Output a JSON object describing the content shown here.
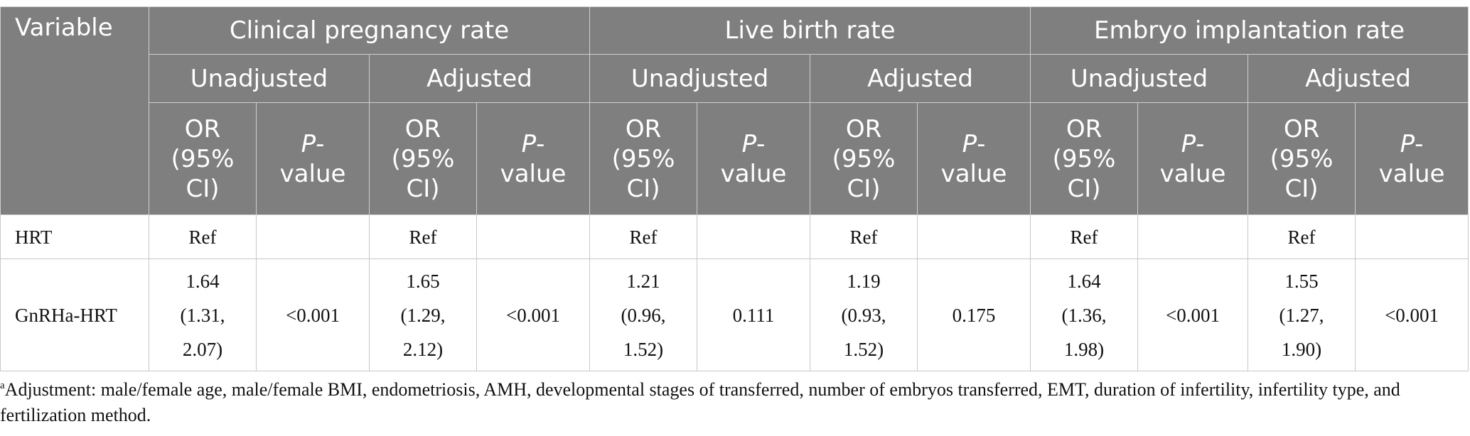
{
  "header": {
    "variable": "Variable",
    "groups": [
      "Clinical pregnancy rate",
      "Live birth rate",
      "Embryo implantation rate"
    ],
    "unadjusted": "Unadjusted",
    "adjusted": "Adjusted",
    "or_line1": "OR",
    "or_line2": "(95%",
    "or_line3": "CI)",
    "p_italic": "P",
    "p_dash": "-",
    "p_value": "value"
  },
  "rows": [
    {
      "label": "HRT",
      "cells": [
        "Ref",
        "",
        "Ref",
        "",
        "Ref",
        "",
        "Ref",
        "",
        "Ref",
        "",
        "Ref",
        ""
      ]
    },
    {
      "label": "GnRHa-HRT",
      "cells": [
        [
          "1.64",
          "(1.31,",
          "2.07)"
        ],
        "<0.001",
        [
          "1.65",
          "(1.29,",
          "2.12)"
        ],
        "<0.001",
        [
          "1.21",
          "(0.96,",
          "1.52)"
        ],
        "0.111",
        [
          "1.19",
          "(0.93,",
          "1.52)"
        ],
        "0.175",
        [
          "1.64",
          "(1.36,",
          "1.98)"
        ],
        "<0.001",
        [
          "1.55",
          "(1.27,",
          "1.90)"
        ],
        "<0.001"
      ]
    }
  ],
  "footnote": {
    "marker": "a",
    "text": "Adjustment: male/female age, male/female BMI, endometriosis, AMH, developmental stages of transferred, number of embryos transferred, EMT, duration of infertility, infertility type, and fertilization method."
  }
}
